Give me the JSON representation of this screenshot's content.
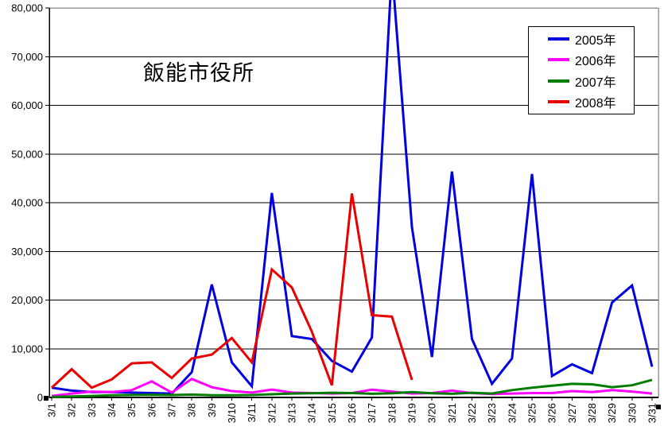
{
  "chart_data": {
    "type": "line",
    "title": "飯能市役所",
    "categories": [
      "3/1",
      "3/2",
      "3/3",
      "3/4",
      "3/5",
      "3/6",
      "3/7",
      "3/8",
      "3/9",
      "3/10",
      "3/11",
      "3/12",
      "3/13",
      "3/14",
      "3/15",
      "3/16",
      "3/17",
      "3/18",
      "3/19",
      "3/20",
      "3/21",
      "3/22",
      "3/23",
      "3/24",
      "3/25",
      "3/26",
      "3/27",
      "3/28",
      "3/29",
      "3/30",
      "3/31"
    ],
    "series": [
      {
        "name": "2005年",
        "color": "#0000e0",
        "values": [
          2000,
          1400,
          1100,
          1100,
          1000,
          900,
          800,
          5200,
          23200,
          7200,
          2300,
          42000,
          12600,
          12000,
          7500,
          5300,
          12300,
          88000,
          35000,
          8300,
          46400,
          12000,
          2800,
          8000,
          45900,
          4400,
          6800,
          5000,
          19500,
          23000,
          6300
        ]
      },
      {
        "name": "2006年",
        "color": "#ff00ff",
        "values": [
          300,
          800,
          1200,
          1100,
          1500,
          3300,
          1000,
          3800,
          2100,
          1300,
          1000,
          1600,
          1000,
          900,
          800,
          900,
          1600,
          1200,
          800,
          900,
          1400,
          900,
          700,
          800,
          900,
          900,
          1300,
          1100,
          1500,
          1200,
          800
        ]
      },
      {
        "name": "2007年",
        "color": "#007c00",
        "values": [
          100,
          200,
          300,
          450,
          500,
          550,
          500,
          600,
          450,
          450,
          500,
          650,
          800,
          850,
          950,
          900,
          750,
          850,
          1100,
          850,
          750,
          950,
          800,
          1500,
          2000,
          2400,
          2800,
          2700,
          2100,
          2500,
          3600
        ]
      },
      {
        "name": "2008年",
        "color": "#ea0000",
        "values": [
          2000,
          5800,
          2000,
          3700,
          7000,
          7200,
          4000,
          8000,
          8800,
          12200,
          7200,
          26300,
          22600,
          13500,
          2500,
          41900,
          16900,
          16600,
          3600
        ]
      }
    ],
    "ylim": [
      0,
      80000
    ],
    "y_tick_step": 10000,
    "y_tick_labels": [
      "0",
      "10,000",
      "20,000",
      "30,000",
      "40,000",
      "50,000",
      "60,000",
      "70,000",
      "80,000"
    ],
    "xlabel": "",
    "ylabel": "",
    "grid": "horizontal",
    "legend_position": "top-right",
    "note_clipped_peak": "2005年 series peak on 3/18 exceeds the 80,000 axis maximum and is clipped at the top of the plot"
  }
}
